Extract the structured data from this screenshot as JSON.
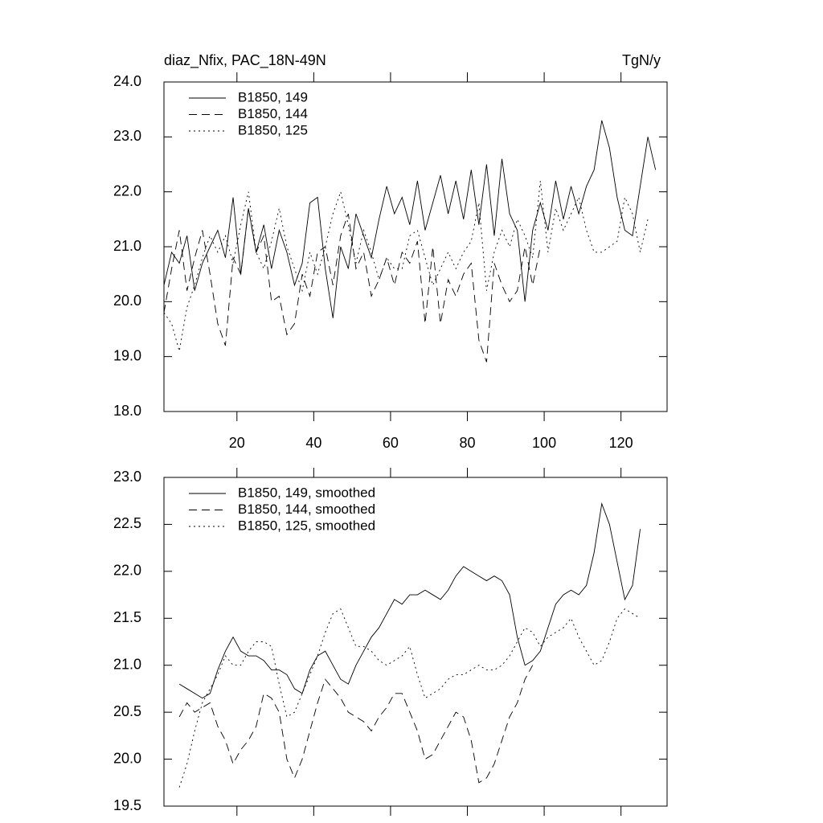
{
  "chart_data": [
    {
      "type": "line",
      "title": "diaz_Nfix, PAC_18N-49N",
      "right_title": "TgN/y",
      "x": [
        1,
        3,
        5,
        7,
        9,
        11,
        13,
        15,
        17,
        19,
        21,
        23,
        25,
        27,
        29,
        31,
        33,
        35,
        37,
        39,
        41,
        43,
        45,
        47,
        49,
        51,
        53,
        55,
        57,
        59,
        61,
        63,
        65,
        67,
        69,
        71,
        73,
        75,
        77,
        79,
        81,
        83,
        85,
        87,
        89,
        91,
        93,
        95,
        97,
        99,
        101,
        103,
        105,
        107,
        109,
        111,
        113,
        115,
        117,
        119,
        121,
        123,
        125,
        127,
        129
      ],
      "xlim": [
        1,
        132
      ],
      "xticks": [
        20,
        40,
        60,
        80,
        100,
        120
      ],
      "ylim": [
        18,
        24
      ],
      "yticks": [
        {
          "value": 18,
          "label": "18.0"
        },
        {
          "value": 19,
          "label": "19.0"
        },
        {
          "value": 20,
          "label": "20.0"
        },
        {
          "value": 21,
          "label": "21.0"
        },
        {
          "value": 22,
          "label": "22.0"
        },
        {
          "value": 23,
          "label": "23.0"
        },
        {
          "value": 24,
          "label": "24.0"
        }
      ],
      "legend": "top-left",
      "series": [
        {
          "name": "B1850, 149",
          "color": "#000000",
          "dash": "solid",
          "values": [
            20.3,
            20.9,
            20.7,
            21.2,
            20.2,
            20.7,
            21.0,
            21.3,
            20.8,
            21.9,
            20.5,
            21.7,
            20.9,
            21.4,
            20.6,
            21.3,
            20.9,
            20.3,
            20.7,
            21.8,
            21.9,
            20.6,
            19.7,
            21.0,
            20.6,
            21.6,
            21.2,
            20.8,
            21.5,
            22.1,
            21.6,
            21.9,
            21.4,
            22.2,
            21.3,
            21.8,
            22.3,
            21.6,
            22.2,
            21.5,
            22.4,
            21.4,
            22.5,
            21.2,
            22.6,
            21.6,
            21.3,
            20.0,
            21.3,
            21.8,
            21.3,
            22.2,
            21.5,
            22.1,
            21.6,
            22.1,
            22.4,
            23.3,
            22.8,
            21.9,
            21.3,
            21.2,
            22.1,
            23.0,
            22.4
          ]
        },
        {
          "name": "B1850, 144",
          "color": "#000000",
          "dash": "dashed",
          "values": [
            19.8,
            20.6,
            21.3,
            20.2,
            20.8,
            21.3,
            20.5,
            19.6,
            19.2,
            20.8,
            20.5,
            21.7,
            20.9,
            21.2,
            20.0,
            20.1,
            19.4,
            19.6,
            20.5,
            20.1,
            20.9,
            21.0,
            20.3,
            21.2,
            21.6,
            20.6,
            20.9,
            20.1,
            20.4,
            20.8,
            20.3,
            20.9,
            20.7,
            21.1,
            19.6,
            21.0,
            19.6,
            20.4,
            20.1,
            20.5,
            20.7,
            19.3,
            18.9,
            20.7,
            20.3,
            20.0,
            20.2,
            21.0,
            20.3,
            21.0,
            null,
            null,
            null,
            null,
            null,
            null,
            null,
            null,
            null,
            null,
            null,
            null,
            null,
            null,
            null
          ]
        },
        {
          "name": "B1850, 125",
          "color": "#000000",
          "dash": "dotted",
          "values": [
            19.8,
            19.6,
            19.1,
            19.9,
            20.3,
            20.8,
            21.2,
            20.9,
            21.2,
            20.7,
            21.4,
            22.0,
            20.9,
            20.6,
            21.1,
            21.7,
            21.0,
            20.6,
            20.2,
            20.9,
            20.5,
            21.0,
            21.6,
            22.0,
            21.4,
            20.7,
            21.3,
            20.9,
            20.4,
            20.8,
            20.6,
            20.6,
            21.2,
            21.3,
            20.8,
            20.3,
            20.6,
            20.9,
            20.6,
            20.9,
            21.1,
            21.8,
            20.2,
            20.9,
            21.3,
            21.0,
            21.5,
            21.2,
            20.8,
            22.2,
            20.9,
            21.7,
            21.3,
            21.6,
            21.9,
            21.3,
            20.9,
            20.9,
            21.0,
            21.1,
            21.9,
            21.6,
            20.9,
            21.5,
            null
          ]
        }
      ]
    },
    {
      "type": "line",
      "x": [
        1,
        3,
        5,
        7,
        9,
        11,
        13,
        15,
        17,
        19,
        21,
        23,
        25,
        27,
        29,
        31,
        33,
        35,
        37,
        39,
        41,
        43,
        45,
        47,
        49,
        51,
        53,
        55,
        57,
        59,
        61,
        63,
        65,
        67,
        69,
        71,
        73,
        75,
        77,
        79,
        81,
        83,
        85,
        87,
        89,
        91,
        93,
        95,
        97,
        99,
        101,
        103,
        105,
        107,
        109,
        111,
        113,
        115,
        117,
        119,
        121,
        123,
        125,
        127,
        129
      ],
      "xlim": [
        1,
        132
      ],
      "xticks": [
        20,
        40,
        60,
        80,
        100,
        120
      ],
      "ylim": [
        19.5,
        23
      ],
      "yticks": [
        19.5,
        {
          "value": 20,
          "label": "20.0"
        },
        20.5,
        {
          "value": 21,
          "label": "21.0"
        },
        21.5,
        {
          "value": 22,
          "label": "22.0"
        },
        22.5,
        {
          "value": 23,
          "label": "23.0"
        }
      ],
      "legend": "top-left",
      "series": [
        {
          "name": "B1850, 149, smoothed",
          "color": "#000000",
          "dash": "solid",
          "values": [
            null,
            null,
            20.8,
            20.75,
            20.7,
            20.65,
            20.7,
            20.95,
            21.15,
            21.3,
            21.15,
            21.1,
            21.1,
            21.05,
            20.95,
            20.95,
            20.9,
            20.75,
            20.7,
            20.95,
            21.1,
            21.15,
            21.0,
            20.85,
            20.8,
            21.0,
            21.15,
            21.3,
            21.4,
            21.55,
            21.7,
            21.65,
            21.75,
            21.75,
            21.8,
            21.75,
            21.7,
            21.8,
            21.95,
            22.05,
            22.0,
            21.95,
            21.9,
            21.95,
            21.9,
            21.75,
            21.3,
            21.0,
            21.05,
            21.15,
            21.4,
            21.65,
            21.75,
            21.8,
            21.75,
            21.85,
            22.2,
            22.72,
            22.5,
            22.1,
            21.7,
            21.85,
            22.45,
            null,
            null
          ]
        },
        {
          "name": "B1850, 144, smoothed",
          "color": "#000000",
          "dash": "dashed",
          "values": [
            null,
            null,
            20.45,
            20.6,
            20.5,
            20.55,
            20.6,
            20.35,
            20.2,
            19.95,
            20.1,
            20.2,
            20.35,
            20.7,
            20.65,
            20.5,
            20.0,
            19.8,
            20.0,
            20.3,
            20.6,
            20.85,
            20.75,
            20.65,
            20.5,
            20.45,
            20.4,
            20.3,
            20.45,
            20.55,
            20.7,
            20.7,
            20.5,
            20.3,
            20.0,
            20.05,
            20.2,
            20.35,
            20.5,
            20.45,
            20.2,
            19.75,
            19.8,
            19.95,
            20.2,
            20.45,
            20.6,
            20.85,
            21.0,
            null,
            null,
            null,
            null,
            null,
            null,
            null,
            null,
            null,
            null,
            null,
            null,
            null,
            null,
            null,
            null
          ]
        },
        {
          "name": "B1850, 125, smoothed",
          "color": "#000000",
          "dash": "dotted",
          "values": [
            null,
            null,
            19.7,
            19.95,
            20.3,
            20.6,
            20.75,
            20.9,
            21.1,
            21.0,
            21.0,
            21.15,
            21.25,
            21.25,
            21.2,
            20.8,
            20.45,
            20.5,
            20.7,
            20.9,
            21.1,
            21.35,
            21.55,
            21.6,
            21.4,
            21.2,
            21.2,
            21.15,
            21.05,
            21.0,
            21.05,
            21.1,
            21.2,
            20.9,
            20.65,
            20.7,
            20.75,
            20.85,
            20.9,
            20.9,
            20.95,
            21.0,
            20.95,
            20.95,
            21.0,
            21.1,
            21.25,
            21.4,
            21.35,
            21.2,
            21.3,
            21.35,
            21.4,
            21.5,
            21.3,
            21.15,
            21.0,
            21.05,
            21.25,
            21.5,
            21.6,
            21.55,
            21.5,
            null,
            null
          ]
        }
      ]
    }
  ]
}
